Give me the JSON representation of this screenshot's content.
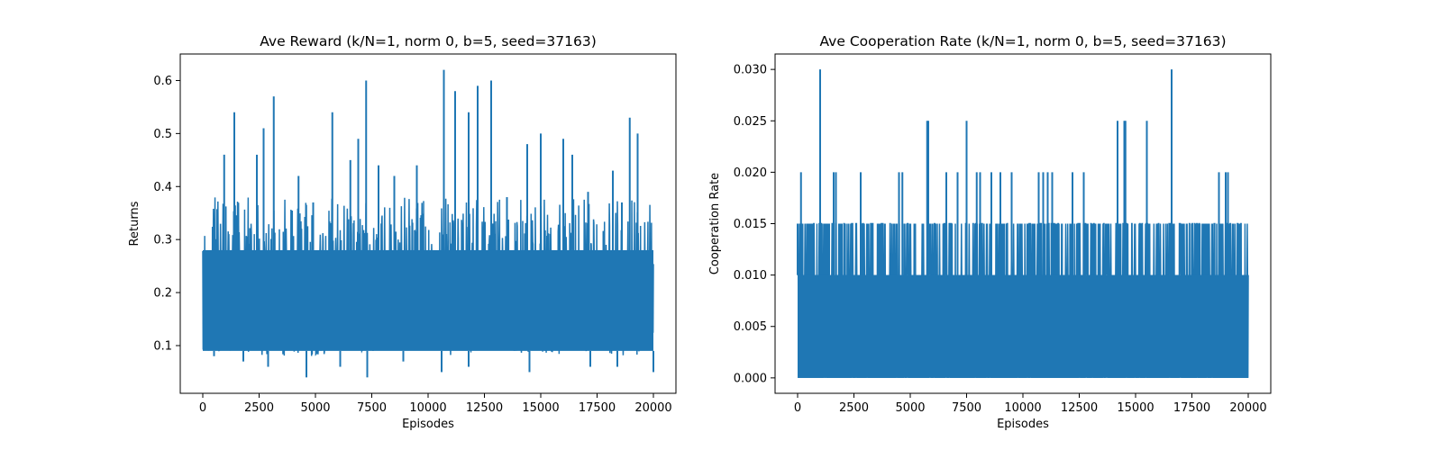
{
  "chart_data": [
    {
      "type": "line",
      "title": "Ave Reward (k/N=1, norm 0, b=5, seed=37163)",
      "xlabel": "Episodes",
      "ylabel": "Returns",
      "xlim": [
        -1000,
        21000
      ],
      "ylim": [
        0.01,
        0.65
      ],
      "xticks": [
        0,
        2500,
        5000,
        7500,
        10000,
        12500,
        15000,
        17500,
        20000
      ],
      "xtick_labels": [
        "0",
        "2500",
        "5000",
        "7500",
        "10000",
        "12500",
        "15000",
        "17500",
        "20000"
      ],
      "yticks": [
        0.1,
        0.2,
        0.3,
        0.4,
        0.5,
        0.6
      ],
      "ytick_labels": [
        "0.1",
        "0.2",
        "0.3",
        "0.4",
        "0.5",
        "0.6"
      ],
      "grid": false,
      "series": [
        {
          "color": "#1f77b4",
          "band": [
            0.09,
            0.28
          ],
          "x": [
            950,
            1400,
            2400,
            2700,
            3150,
            4250,
            4900,
            5750,
            6550,
            6900,
            7250,
            7800,
            8500,
            9500,
            10700,
            11200,
            11800,
            12200,
            12800,
            13500,
            14400,
            15000,
            16000,
            16400,
            17100,
            18200,
            18600,
            18950,
            19300
          ],
          "y": [
            0.46,
            0.54,
            0.46,
            0.51,
            0.57,
            0.42,
            0.37,
            0.54,
            0.45,
            0.49,
            0.6,
            0.44,
            0.42,
            0.44,
            0.62,
            0.58,
            0.54,
            0.59,
            0.6,
            0.38,
            0.48,
            0.5,
            0.49,
            0.46,
            0.39,
            0.43,
            0.37,
            0.53,
            0.5
          ],
          "dips_x": [
            500,
            1800,
            2900,
            4600,
            6100,
            7300,
            8900,
            10600,
            11800,
            14500,
            17200,
            18400,
            20000
          ],
          "dips_y": [
            0.08,
            0.07,
            0.06,
            0.04,
            0.06,
            0.04,
            0.07,
            0.05,
            0.06,
            0.05,
            0.06,
            0.06,
            0.05
          ]
        }
      ]
    },
    {
      "type": "line",
      "title": "Ave Cooperation Rate (k/N=1, norm 0, b=5, seed=37163)",
      "xlabel": "Episodes",
      "ylabel": "Cooperation Rate",
      "xlim": [
        -1000,
        21000
      ],
      "ylim": [
        -0.0015,
        0.0315
      ],
      "xticks": [
        0,
        2500,
        5000,
        7500,
        10000,
        12500,
        15000,
        17500,
        20000
      ],
      "xtick_labels": [
        "0",
        "2500",
        "5000",
        "7500",
        "10000",
        "12500",
        "15000",
        "17500",
        "20000"
      ],
      "yticks": [
        0.0,
        0.005,
        0.01,
        0.015,
        0.02,
        0.025,
        0.03
      ],
      "ytick_labels": [
        "0.000",
        "0.005",
        "0.010",
        "0.015",
        "0.020",
        "0.025",
        "0.030"
      ],
      "grid": false,
      "series": [
        {
          "color": "#1f77b4",
          "band": [
            0.0,
            0.01
          ],
          "x": [
            0,
            150,
            600,
            1000,
            1400,
            1600,
            1700,
            2800,
            4500,
            4650,
            5750,
            5800,
            6600,
            7100,
            7500,
            7950,
            8100,
            8600,
            9000,
            9500,
            10700,
            10900,
            11100,
            11300,
            12200,
            12700,
            14200,
            14500,
            14550,
            15500,
            16600,
            18700,
            19000,
            19100
          ],
          "y": [
            0.015,
            0.02,
            0.015,
            0.03,
            0.015,
            0.02,
            0.02,
            0.02,
            0.02,
            0.02,
            0.025,
            0.025,
            0.02,
            0.02,
            0.025,
            0.02,
            0.02,
            0.02,
            0.02,
            0.02,
            0.02,
            0.02,
            0.02,
            0.02,
            0.02,
            0.02,
            0.025,
            0.025,
            0.025,
            0.025,
            0.03,
            0.02,
            0.02,
            0.02
          ]
        }
      ]
    }
  ]
}
